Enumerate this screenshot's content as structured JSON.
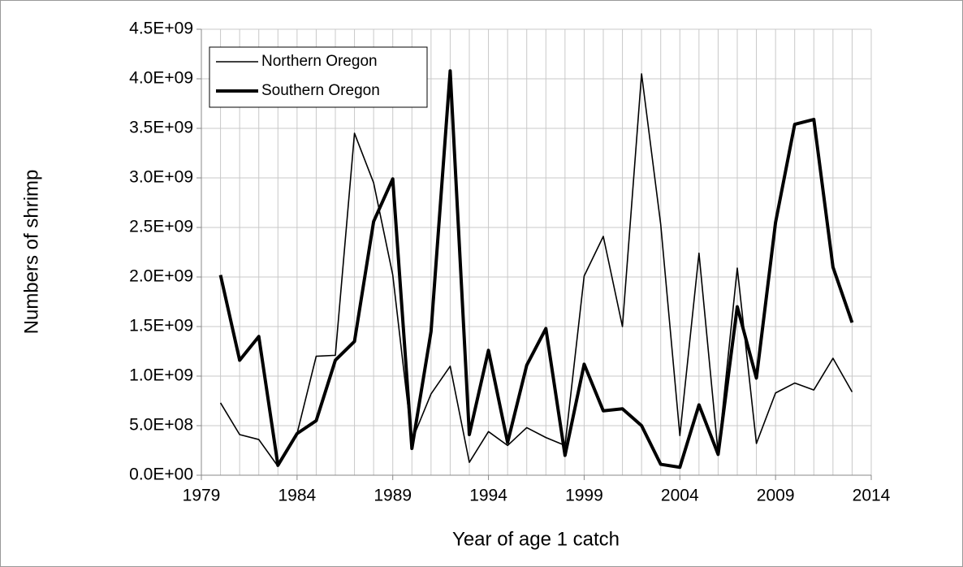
{
  "chart_data": {
    "type": "line",
    "x_label": "Year of age 1 catch",
    "y_label": "Numbers of shrimp",
    "x": [
      1980,
      1981,
      1982,
      1983,
      1984,
      1985,
      1986,
      1987,
      1988,
      1989,
      1990,
      1991,
      1992,
      1993,
      1994,
      1995,
      1996,
      1997,
      1998,
      1999,
      2000,
      2001,
      2002,
      2003,
      2004,
      2005,
      2006,
      2007,
      2008,
      2009,
      2010,
      2011,
      2012,
      2013
    ],
    "series": [
      {
        "name": "Northern Oregon",
        "color": "#000000",
        "values": [
          730000000,
          410000000,
          360000000,
          90000000,
          420000000,
          1200000000,
          1210000000,
          3450000000,
          2950000000,
          2020000000,
          350000000,
          820000000,
          1100000000,
          130000000,
          440000000,
          300000000,
          480000000,
          380000000,
          300000000,
          2010000000,
          2410000000,
          1500000000,
          4050000000,
          2530000000,
          400000000,
          2240000000,
          220000000,
          2090000000,
          320000000,
          830000000,
          930000000,
          860000000,
          1180000000,
          840000000
        ]
      },
      {
        "name": "Southern Oregon",
        "color": "#000000",
        "values": [
          2020000000,
          1160000000,
          1400000000,
          100000000,
          420000000,
          550000000,
          1160000000,
          1350000000,
          2560000000,
          2990000000,
          270000000,
          1450000000,
          4080000000,
          410000000,
          1260000000,
          330000000,
          1110000000,
          1480000000,
          200000000,
          1120000000,
          650000000,
          670000000,
          500000000,
          110000000,
          80000000,
          710000000,
          210000000,
          1700000000,
          980000000,
          2550000000,
          3540000000,
          3590000000,
          2100000000,
          1540000000
        ]
      }
    ],
    "xlim": [
      1979,
      2014
    ],
    "xticks": [
      1979,
      1984,
      1989,
      1994,
      1999,
      2004,
      2009,
      2014
    ],
    "ylim": [
      0,
      4500000000
    ],
    "yticks": [
      {
        "value": 0,
        "label": "0.0E+00"
      },
      {
        "value": 500000000,
        "label": "5.0E+08"
      },
      {
        "value": 1000000000,
        "label": "1.0E+09"
      },
      {
        "value": 1500000000,
        "label": "1.5E+09"
      },
      {
        "value": 2000000000,
        "label": "2.0E+09"
      },
      {
        "value": 2500000000,
        "label": "2.5E+09"
      },
      {
        "value": 3000000000,
        "label": "3.0E+09"
      },
      {
        "value": 3500000000,
        "label": "3.5E+09"
      },
      {
        "value": 4000000000,
        "label": "4.0E+09"
      },
      {
        "value": 4500000000,
        "label": "4.5E+09"
      }
    ],
    "grid": true,
    "legend": "upper left"
  }
}
